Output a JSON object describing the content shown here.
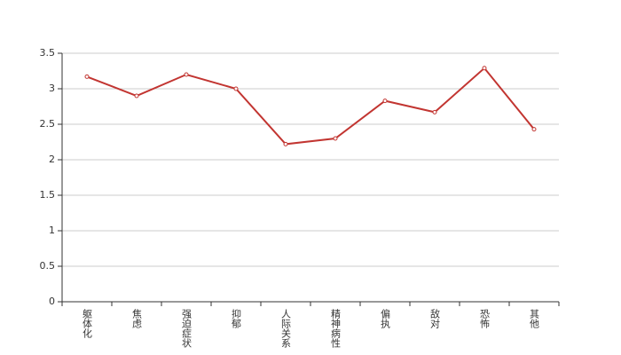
{
  "chart_data": {
    "type": "line",
    "categories": [
      "躯体化",
      "焦虑",
      "强迫症状",
      "抑郁",
      "人际关系",
      "精神病性",
      "偏执",
      "敌对",
      "恐怖",
      "其他"
    ],
    "series": [
      {
        "color": "#c23531",
        "values": [
          3.17,
          2.9,
          3.2,
          3.0,
          2.22,
          2.3,
          2.83,
          2.67,
          3.29,
          2.43
        ]
      }
    ],
    "ylim": [
      0,
      3.5
    ],
    "yticks": [
      0,
      0.5,
      1,
      1.5,
      2,
      2.5,
      3,
      3.5
    ],
    "grid": true
  }
}
